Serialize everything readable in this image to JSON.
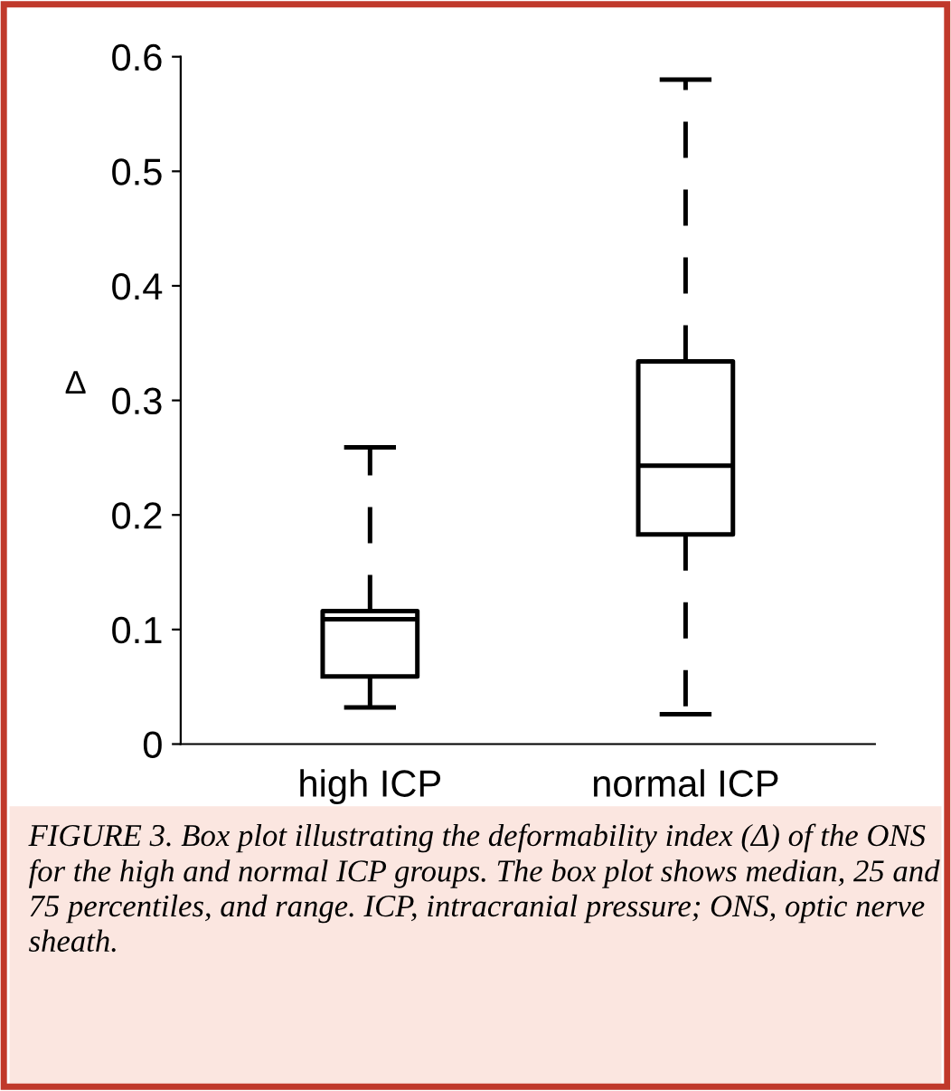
{
  "chart_data": {
    "type": "box",
    "ylabel": "Δ",
    "categories": [
      "high ICP",
      "normal ICP"
    ],
    "boxes": [
      {
        "low": 0.032,
        "q1": 0.059,
        "median": 0.109,
        "q3": 0.116,
        "high": 0.259
      },
      {
        "low": 0.026,
        "q1": 0.183,
        "median": 0.243,
        "q3": 0.334,
        "high": 0.58
      }
    ],
    "ylim": [
      0,
      0.6
    ],
    "yticks": [
      0,
      0.1,
      0.2,
      0.3,
      0.4,
      0.5,
      0.6
    ],
    "grid": false,
    "line_style": "dashed",
    "annotations": [
      "FIGURE 3. Box plot illustrating the deformability index (Δ) of the ONS for the high and normal ICP groups. The box plot shows median, 25 and 75 percentiles, and range. ICP, intracranial pressure; ONS, optic nerve sheath."
    ]
  }
}
